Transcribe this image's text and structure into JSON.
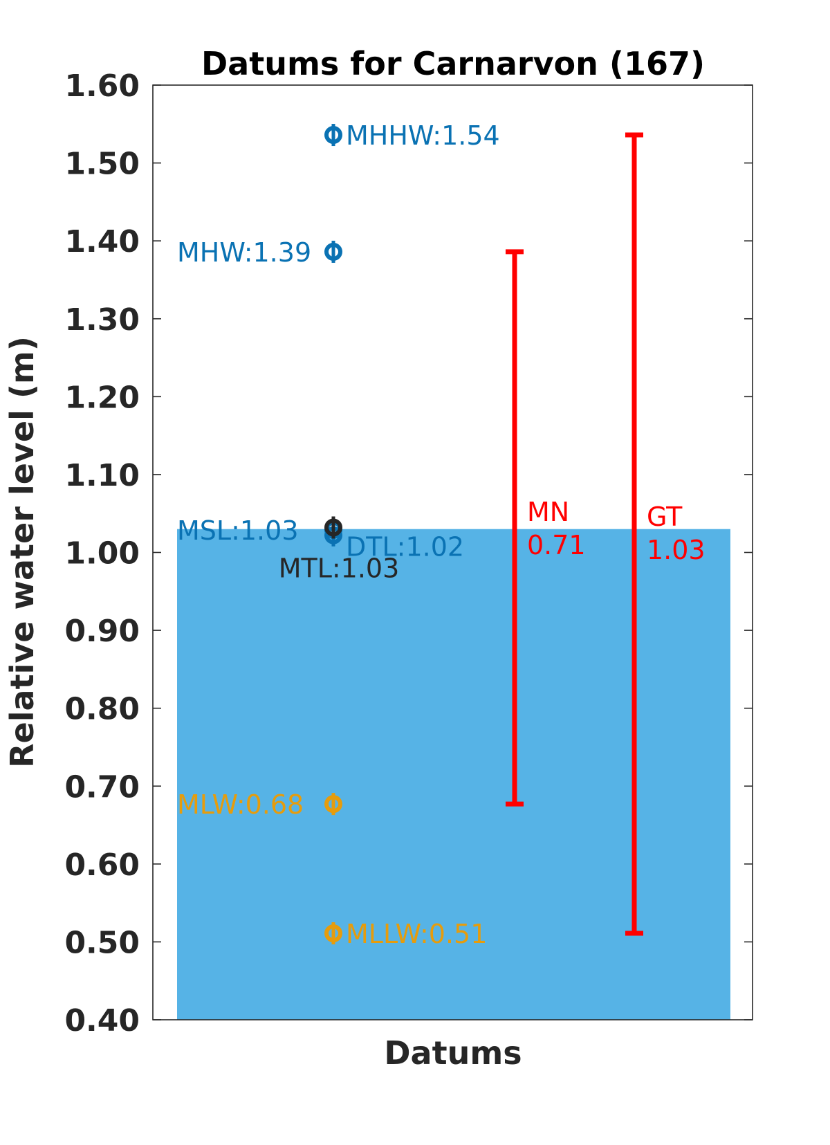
{
  "chart_data": {
    "type": "bar",
    "title": "Datums for Carnarvon (167)",
    "xlabel": "Datums",
    "ylabel": "Relative water level (m)",
    "ylim": [
      0.4,
      1.6
    ],
    "yticks": [
      "0.40",
      "0.50",
      "0.60",
      "0.70",
      "0.80",
      "0.90",
      "1.00",
      "1.10",
      "1.20",
      "1.30",
      "1.40",
      "1.50",
      "1.60"
    ],
    "grid": false,
    "colors": {
      "bar": "#56b3e6",
      "high_datums": "#0a72b3",
      "low_datums": "#e69c0c",
      "mean_datum": "#262626",
      "ranges": "#ff0000"
    },
    "bar": {
      "value": 1.03
    },
    "datums": [
      {
        "name": "MHHW",
        "label": "MHHW:1.54",
        "value": 1.536,
        "group": "high",
        "label_side": "right"
      },
      {
        "name": "MHW",
        "label": "MHW:1.39",
        "value": 1.386,
        "group": "high",
        "label_side": "left"
      },
      {
        "name": "MSL",
        "label": "MSL:1.03",
        "value": 1.029,
        "group": "high",
        "label_side": "left"
      },
      {
        "name": "DTL",
        "label": "DTL:1.02",
        "value": 1.022,
        "group": "high",
        "label_side": "right-below"
      },
      {
        "name": "MTL",
        "label": "MTL:1.03",
        "value": 1.032,
        "group": "mean",
        "label_side": "below"
      },
      {
        "name": "MLW",
        "label": "MLW:0.68",
        "value": 0.677,
        "group": "low",
        "label_side": "left"
      },
      {
        "name": "MLLW",
        "label": "MLLW:0.51",
        "value": 0.511,
        "group": "low",
        "label_side": "right"
      }
    ],
    "ranges": [
      {
        "name": "MN",
        "value_label": "0.71",
        "low": 0.677,
        "high": 1.386
      },
      {
        "name": "GT",
        "value_label": "1.03",
        "low": 0.511,
        "high": 1.536
      }
    ]
  }
}
